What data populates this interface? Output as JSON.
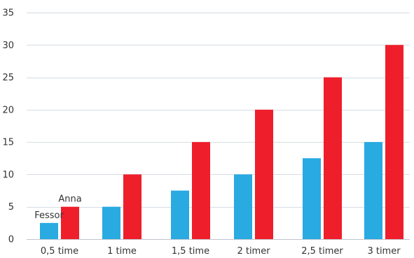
{
  "chart_data": {
    "type": "bar",
    "title": "",
    "xlabel": "",
    "ylabel": "",
    "categories": [
      "0,5 time",
      "1 time",
      "1,5 time",
      "2 timer",
      "2,5 timer",
      "3 timer"
    ],
    "series": [
      {
        "name": "Fessor",
        "values": [
          2.5,
          5,
          7.5,
          10,
          12.5,
          15
        ],
        "color": "#29aae1"
      },
      {
        "name": "Anna",
        "values": [
          5,
          10,
          15,
          20,
          25,
          30
        ],
        "color": "#ee1f2b"
      }
    ],
    "ylim": [
      0,
      35
    ],
    "yticks": [
      0,
      5,
      10,
      15,
      20,
      25,
      30,
      35
    ],
    "grid": true,
    "legend": "series names shown as labels above the first pair of bars"
  }
}
